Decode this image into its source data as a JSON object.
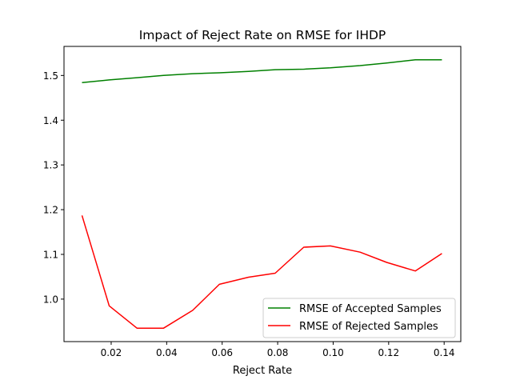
{
  "chart_data": {
    "type": "line",
    "title": "Impact of Reject Rate on RMSE for IHDP",
    "xlabel": "Reject Rate",
    "ylabel": "",
    "xlim": [
      0.003,
      0.146
    ],
    "ylim": [
      0.905,
      1.565
    ],
    "x_ticks": [
      0.02,
      0.04,
      0.06,
      0.08,
      0.1,
      0.12,
      0.14
    ],
    "x_tick_labels": [
      "0.02",
      "0.04",
      "0.06",
      "0.08",
      "0.10",
      "0.12",
      "0.14"
    ],
    "y_ticks": [
      1.0,
      1.1,
      1.2,
      1.3,
      1.4,
      1.5
    ],
    "y_tick_labels": [
      "1.0",
      "1.1",
      "1.2",
      "1.3",
      "1.4",
      "1.5"
    ],
    "grid": false,
    "legend_position": "lower-right",
    "x": [
      0.0095,
      0.0193,
      0.0293,
      0.0389,
      0.0494,
      0.059,
      0.0695,
      0.0791,
      0.0894,
      0.099,
      0.1097,
      0.1193,
      0.1296,
      0.1392
    ],
    "series": [
      {
        "name": "RMSE of Accepted Samples",
        "color": "#008000",
        "values": [
          1.484,
          1.49,
          1.495,
          1.5,
          1.504,
          1.506,
          1.509,
          1.513,
          1.514,
          1.517,
          1.522,
          1.528,
          1.535,
          1.535
        ]
      },
      {
        "name": "RMSE of Rejected Samples",
        "color": "#ff0000",
        "values": [
          1.187,
          0.985,
          0.935,
          0.935,
          0.975,
          1.033,
          1.049,
          1.058,
          1.116,
          1.119,
          1.105,
          1.082,
          1.063,
          1.102
        ]
      }
    ]
  }
}
